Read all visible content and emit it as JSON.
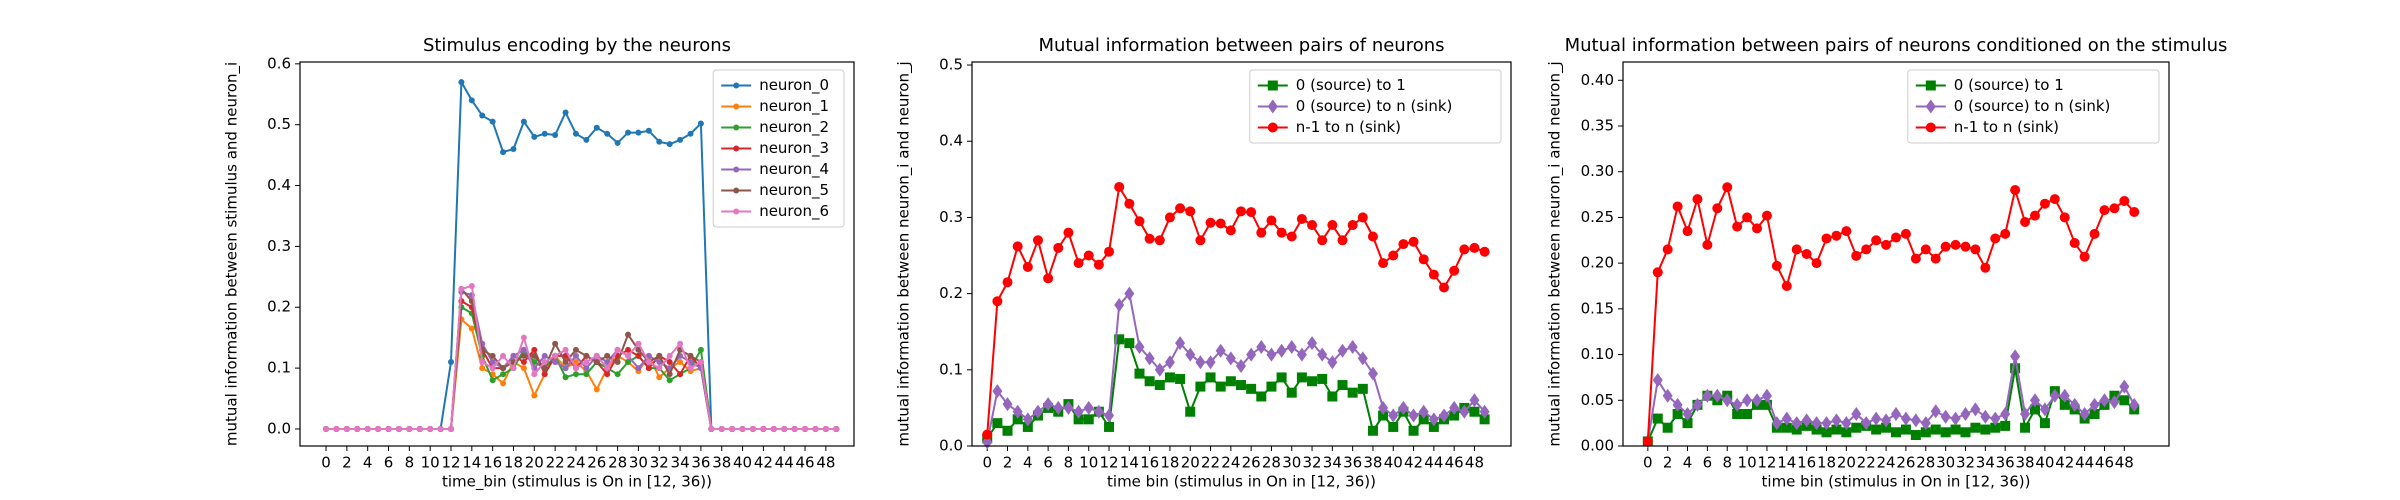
{
  "chart_data": [
    {
      "type": "line",
      "title": "Stimulus encoding by the neurons",
      "xlabel": "time_bin (stimulus is On in [12, 36))",
      "ylabel": "mutual information between stimulus and neuron_i",
      "x": [
        0,
        1,
        2,
        3,
        4,
        5,
        6,
        7,
        8,
        9,
        10,
        11,
        12,
        13,
        14,
        15,
        16,
        17,
        18,
        19,
        20,
        21,
        22,
        23,
        24,
        25,
        26,
        27,
        28,
        29,
        30,
        31,
        32,
        33,
        34,
        35,
        36,
        37,
        38,
        39,
        40,
        41,
        42,
        43,
        44,
        45,
        46,
        47,
        48,
        49
      ],
      "xlim": [
        -2.5,
        50.7
      ],
      "xticks": [
        0,
        2,
        4,
        6,
        8,
        10,
        12,
        14,
        16,
        18,
        20,
        22,
        24,
        26,
        28,
        30,
        32,
        34,
        36,
        38,
        40,
        42,
        44,
        46,
        48
      ],
      "ylim": [
        -0.028,
        0.603
      ],
      "yticks": [
        {
          "value": 0,
          "label": "0.0"
        },
        0.1,
        0.2,
        0.3,
        0.4,
        0.5,
        0.6
      ],
      "legend": "upper right",
      "series": [
        {
          "name": "neuron_0",
          "color": "#1f77b4",
          "marker": "o",
          "values": [
            0,
            0,
            0,
            0,
            0,
            0,
            0,
            0,
            0,
            0,
            0,
            0,
            0.11,
            0.57,
            0.54,
            0.515,
            0.505,
            0.455,
            0.46,
            0.505,
            0.48,
            0.485,
            0.483,
            0.52,
            0.485,
            0.475,
            0.495,
            0.485,
            0.47,
            0.487,
            0.487,
            0.49,
            0.472,
            0.468,
            0.475,
            0.485,
            0.502,
            0,
            0,
            0,
            0,
            0,
            0,
            0,
            0,
            0,
            0,
            0,
            0,
            0
          ]
        },
        {
          "name": "neuron_1",
          "color": "#ff7f0e",
          "marker": "o",
          "values": [
            0,
            0,
            0,
            0,
            0,
            0,
            0,
            0,
            0,
            0,
            0,
            0,
            0,
            0.18,
            0.165,
            0.1,
            0.09,
            0.075,
            0.11,
            0.1,
            0.055,
            0.09,
            0.12,
            0.1,
            0.11,
            0.095,
            0.065,
            0.1,
            0.12,
            0.11,
            0.095,
            0.12,
            0.085,
            0.1,
            0.11,
            0.095,
            0.1,
            0,
            0,
            0,
            0,
            0,
            0,
            0,
            0,
            0,
            0,
            0,
            0,
            0
          ]
        },
        {
          "name": "neuron_2",
          "color": "#2ca02c",
          "marker": "o",
          "values": [
            0,
            0,
            0,
            0,
            0,
            0,
            0,
            0,
            0,
            0,
            0,
            0,
            0,
            0.2,
            0.19,
            0.12,
            0.08,
            0.09,
            0.1,
            0.13,
            0.11,
            0.1,
            0.12,
            0.085,
            0.09,
            0.09,
            0.11,
            0.1,
            0.09,
            0.11,
            0.12,
            0.1,
            0.1,
            0.08,
            0.09,
            0.1,
            0.13,
            0,
            0,
            0,
            0,
            0,
            0,
            0,
            0,
            0,
            0,
            0,
            0,
            0
          ]
        },
        {
          "name": "neuron_3",
          "color": "#d62728",
          "marker": "o",
          "values": [
            0,
            0,
            0,
            0,
            0,
            0,
            0,
            0,
            0,
            0,
            0,
            0,
            0,
            0.21,
            0.2,
            0.13,
            0.1,
            0.1,
            0.12,
            0.11,
            0.13,
            0.09,
            0.12,
            0.12,
            0.1,
            0.12,
            0.11,
            0.09,
            0.12,
            0.13,
            0.12,
            0.1,
            0.12,
            0.11,
            0.09,
            0.12,
            0.1,
            0,
            0,
            0,
            0,
            0,
            0,
            0,
            0,
            0,
            0,
            0,
            0,
            0
          ]
        },
        {
          "name": "neuron_4",
          "color": "#9467bd",
          "marker": "o",
          "values": [
            0,
            0,
            0,
            0,
            0,
            0,
            0,
            0,
            0,
            0,
            0,
            0,
            0,
            0.225,
            0.22,
            0.14,
            0.11,
            0.1,
            0.12,
            0.13,
            0.1,
            0.12,
            0.11,
            0.1,
            0.12,
            0.1,
            0.12,
            0.11,
            0.13,
            0.12,
            0.1,
            0.12,
            0.11,
            0.1,
            0.12,
            0.11,
            0.1,
            0,
            0,
            0,
            0,
            0,
            0,
            0,
            0,
            0,
            0,
            0,
            0,
            0
          ]
        },
        {
          "name": "neuron_5",
          "color": "#8c564b",
          "marker": "o",
          "values": [
            0,
            0,
            0,
            0,
            0,
            0,
            0,
            0,
            0,
            0,
            0,
            0,
            0,
            0.23,
            0.21,
            0.13,
            0.12,
            0.1,
            0.11,
            0.12,
            0.12,
            0.1,
            0.14,
            0.11,
            0.13,
            0.12,
            0.11,
            0.12,
            0.11,
            0.155,
            0.13,
            0.11,
            0.12,
            0.09,
            0.13,
            0.12,
            0.11,
            0,
            0,
            0,
            0,
            0,
            0,
            0,
            0,
            0,
            0,
            0,
            0,
            0
          ]
        },
        {
          "name": "neuron_6",
          "color": "#e377c2",
          "marker": "o",
          "values": [
            0,
            0,
            0,
            0,
            0,
            0,
            0,
            0,
            0,
            0,
            0,
            0,
            0,
            0.23,
            0.235,
            0.11,
            0.1,
            0.12,
            0.1,
            0.15,
            0.09,
            0.11,
            0.12,
            0.13,
            0.1,
            0.11,
            0.12,
            0.1,
            0.13,
            0.12,
            0.14,
            0.11,
            0.1,
            0.12,
            0.14,
            0.1,
            0.11,
            0,
            0,
            0,
            0,
            0,
            0,
            0,
            0,
            0,
            0,
            0,
            0,
            0
          ]
        }
      ]
    },
    {
      "type": "line",
      "title": "Mutual information between pairs of neurons",
      "xlabel": "time bin (stimulus in On in [12, 36))",
      "ylabel": "mutual information between neuron_i and neuron_j",
      "x": [
        0,
        1,
        2,
        3,
        4,
        5,
        6,
        7,
        8,
        9,
        10,
        11,
        12,
        13,
        14,
        15,
        16,
        17,
        18,
        19,
        20,
        21,
        22,
        23,
        24,
        25,
        26,
        27,
        28,
        29,
        30,
        31,
        32,
        33,
        34,
        35,
        36,
        37,
        38,
        39,
        40,
        41,
        42,
        43,
        44,
        45,
        46,
        47,
        48,
        49
      ],
      "xlim": [
        -1.5,
        51.6
      ],
      "xticks": [
        0,
        2,
        4,
        6,
        8,
        10,
        12,
        14,
        16,
        18,
        20,
        22,
        24,
        26,
        28,
        30,
        32,
        34,
        36,
        38,
        40,
        42,
        44,
        46,
        48
      ],
      "ylim": [
        0,
        0.504
      ],
      "yticks": [
        {
          "value": 0,
          "label": "0.0"
        },
        0.1,
        0.2,
        0.3,
        0.4,
        0.5
      ],
      "legend": "upper right",
      "series": [
        {
          "name": "0 (source) to 1",
          "color": "#008000",
          "marker": "s",
          "values": [
            0.01,
            0.03,
            0.02,
            0.035,
            0.025,
            0.04,
            0.05,
            0.045,
            0.055,
            0.035,
            0.035,
            0.045,
            0.025,
            0.14,
            0.135,
            0.095,
            0.085,
            0.08,
            0.09,
            0.088,
            0.045,
            0.078,
            0.09,
            0.078,
            0.085,
            0.08,
            0.075,
            0.065,
            0.078,
            0.09,
            0.07,
            0.09,
            0.085,
            0.088,
            0.065,
            0.08,
            0.07,
            0.075,
            0.02,
            0.04,
            0.025,
            0.045,
            0.02,
            0.035,
            0.025,
            0.035,
            0.04,
            0.05,
            0.045,
            0.035
          ]
        },
        {
          "name": "0 (source) to n (sink)",
          "color": "#9467bd",
          "marker": "d",
          "values": [
            0.005,
            0.072,
            0.055,
            0.045,
            0.035,
            0.045,
            0.055,
            0.05,
            0.05,
            0.045,
            0.05,
            0.045,
            0.04,
            0.185,
            0.2,
            0.13,
            0.115,
            0.1,
            0.11,
            0.135,
            0.12,
            0.11,
            0.11,
            0.125,
            0.115,
            0.105,
            0.12,
            0.13,
            0.12,
            0.125,
            0.13,
            0.12,
            0.135,
            0.12,
            0.11,
            0.125,
            0.13,
            0.115,
            0.095,
            0.05,
            0.04,
            0.05,
            0.04,
            0.045,
            0.035,
            0.04,
            0.05,
            0.045,
            0.06,
            0.045
          ]
        },
        {
          "name": "n-1 to n (sink)",
          "color": "#ff0000",
          "marker": "o",
          "values": [
            0.015,
            0.19,
            0.215,
            0.262,
            0.235,
            0.27,
            0.22,
            0.26,
            0.28,
            0.24,
            0.25,
            0.238,
            0.255,
            0.34,
            0.318,
            0.295,
            0.272,
            0.27,
            0.3,
            0.312,
            0.308,
            0.27,
            0.293,
            0.292,
            0.283,
            0.308,
            0.307,
            0.28,
            0.296,
            0.28,
            0.275,
            0.298,
            0.29,
            0.27,
            0.29,
            0.27,
            0.29,
            0.3,
            0.275,
            0.24,
            0.25,
            0.265,
            0.268,
            0.245,
            0.225,
            0.208,
            0.23,
            0.258,
            0.26,
            0.255
          ]
        }
      ]
    },
    {
      "type": "line",
      "title": "Mutual information between pairs of neurons conditioned on the stimulus",
      "xlabel": "time bin (stimulus in On in [12, 36))",
      "ylabel": "mutual information between neuron_i and neuron_j",
      "x": [
        0,
        1,
        2,
        3,
        4,
        5,
        6,
        7,
        8,
        9,
        10,
        11,
        12,
        13,
        14,
        15,
        16,
        17,
        18,
        19,
        20,
        21,
        22,
        23,
        24,
        25,
        26,
        27,
        28,
        29,
        30,
        31,
        32,
        33,
        34,
        35,
        36,
        37,
        38,
        39,
        40,
        41,
        42,
        43,
        44,
        45,
        46,
        47,
        48,
        49
      ],
      "xlim": [
        -2.5,
        52.5
      ],
      "xticks": [
        0,
        2,
        4,
        6,
        8,
        10,
        12,
        14,
        16,
        18,
        20,
        22,
        24,
        26,
        28,
        30,
        32,
        34,
        36,
        38,
        40,
        42,
        44,
        46,
        48
      ],
      "ylim": [
        0,
        0.42
      ],
      "yticks": [
        {
          "value": 0,
          "label": "0.00"
        },
        0.05,
        {
          "value": 0.1,
          "label": "0.10"
        },
        0.15,
        {
          "value": 0.2,
          "label": "0.20"
        },
        0.25,
        {
          "value": 0.3,
          "label": "0.30"
        },
        0.35,
        {
          "value": 0.4,
          "label": "0.40"
        }
      ],
      "legend": "upper right",
      "series": [
        {
          "name": "0 (source) to 1",
          "color": "#008000",
          "marker": "s",
          "values": [
            0.005,
            0.03,
            0.02,
            0.035,
            0.025,
            0.045,
            0.055,
            0.05,
            0.055,
            0.035,
            0.035,
            0.045,
            0.045,
            0.02,
            0.02,
            0.018,
            0.022,
            0.018,
            0.015,
            0.018,
            0.015,
            0.02,
            0.022,
            0.018,
            0.02,
            0.015,
            0.018,
            0.012,
            0.015,
            0.018,
            0.015,
            0.018,
            0.015,
            0.02,
            0.018,
            0.02,
            0.022,
            0.085,
            0.02,
            0.04,
            0.025,
            0.06,
            0.045,
            0.04,
            0.03,
            0.035,
            0.045,
            0.055,
            0.05,
            0.04
          ]
        },
        {
          "name": "0 (source) to n (sink)",
          "color": "#9467bd",
          "marker": "d",
          "values": [
            0.005,
            0.072,
            0.055,
            0.045,
            0.035,
            0.045,
            0.055,
            0.055,
            0.05,
            0.045,
            0.05,
            0.05,
            0.055,
            0.025,
            0.03,
            0.025,
            0.028,
            0.025,
            0.025,
            0.028,
            0.025,
            0.035,
            0.025,
            0.03,
            0.028,
            0.035,
            0.03,
            0.028,
            0.025,
            0.038,
            0.032,
            0.03,
            0.035,
            0.04,
            0.032,
            0.03,
            0.035,
            0.098,
            0.035,
            0.05,
            0.04,
            0.055,
            0.055,
            0.045,
            0.035,
            0.045,
            0.05,
            0.048,
            0.065,
            0.045
          ]
        },
        {
          "name": "n-1 to n (sink)",
          "color": "#ff0000",
          "marker": "o",
          "values": [
            0.005,
            0.19,
            0.215,
            0.262,
            0.235,
            0.27,
            0.22,
            0.26,
            0.283,
            0.24,
            0.25,
            0.238,
            0.252,
            0.197,
            0.175,
            0.215,
            0.21,
            0.2,
            0.227,
            0.23,
            0.235,
            0.208,
            0.215,
            0.225,
            0.22,
            0.228,
            0.232,
            0.205,
            0.215,
            0.205,
            0.218,
            0.22,
            0.218,
            0.215,
            0.195,
            0.227,
            0.232,
            0.28,
            0.245,
            0.252,
            0.265,
            0.27,
            0.25,
            0.222,
            0.207,
            0.232,
            0.258,
            0.26,
            0.268,
            0.256
          ]
        }
      ]
    }
  ]
}
